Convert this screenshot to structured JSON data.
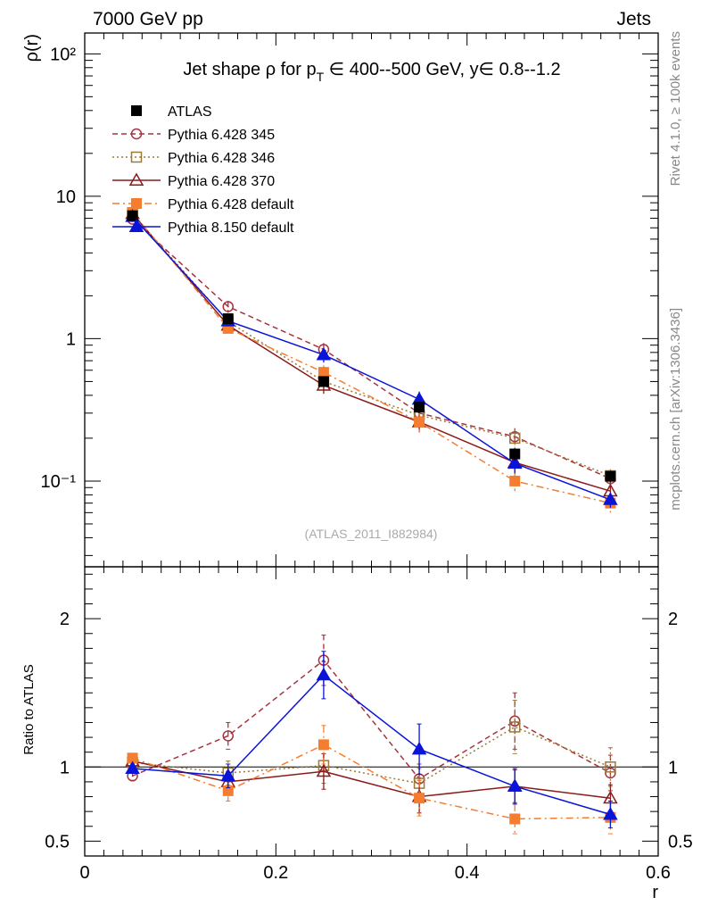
{
  "header": {
    "left": "7000 GeV pp",
    "right": "Jets"
  },
  "side_label_top": "Rivet 4.1.0, ≥ 100k events",
  "side_label_bottom": "mcplots.cern.ch [arXiv:1306.3436]",
  "watermark": "(ATLAS_2011_I882984)",
  "chart_data": {
    "type": "line",
    "title": {
      "prefix": "Jet shape ρ for p",
      "sub": "T",
      "suffix": " ∈ 400--500 GeV, y∈ 0.8--1.2"
    },
    "ylabel": "ρ(r)",
    "ratio_ylabel": "Ratio to ATLAS",
    "xlabel": "r",
    "xlim": [
      0,
      0.6
    ],
    "ylim": [
      0.025,
      140
    ],
    "ratio_ylim": [
      0.4,
      2.35
    ],
    "yscale": "log",
    "x_ticks": [
      "0",
      "0.2",
      "0.4",
      "0.6"
    ],
    "y_ticks": [
      "10⁻¹",
      "1",
      "10",
      "10²"
    ],
    "ratio_y_ticks": [
      "0.5",
      "1",
      "2"
    ],
    "x": [
      0.05,
      0.15,
      0.25,
      0.35,
      0.45,
      0.55
    ],
    "series": [
      {
        "name": "ATLAS",
        "color": "#000000",
        "marker": "square-filled",
        "line": "none",
        "values": [
          7.3,
          1.38,
          0.5,
          0.33,
          0.155,
          0.108
        ],
        "errors": [
          0.25,
          0.09,
          0.04,
          0.03,
          0.015,
          0.01
        ],
        "ratio": [
          1.0,
          1.0,
          1.0,
          1.0,
          1.0,
          1.0
        ]
      },
      {
        "name": "Pythia 6.428 345",
        "color": "#a5343f",
        "marker": "circle-open",
        "line": "dashed",
        "values": [
          6.9,
          1.68,
          0.84,
          0.3,
          0.205,
          0.104
        ],
        "errors": [
          0.3,
          0.16,
          0.09,
          0.04,
          0.03,
          0.012
        ],
        "ratio": [
          0.94,
          1.21,
          1.72,
          0.92,
          1.31,
          0.96
        ],
        "ratio_errors": [
          0.03,
          0.09,
          0.17,
          0.1,
          0.19,
          0.12
        ]
      },
      {
        "name": "Pythia 6.428 346",
        "color": "#9c7a37",
        "marker": "square-open",
        "line": "dotted",
        "values": [
          7.5,
          1.32,
          0.5,
          0.29,
          0.2,
          0.109
        ],
        "errors": [
          0.3,
          0.12,
          0.06,
          0.04,
          0.03,
          0.012
        ],
        "ratio": [
          1.03,
          0.96,
          1.01,
          0.89,
          1.27,
          1.0
        ],
        "ratio_errors": [
          0.03,
          0.08,
          0.12,
          0.1,
          0.18,
          0.13
        ]
      },
      {
        "name": "Pythia 6.428 370",
        "color": "#8b1a1a",
        "marker": "triangle-open",
        "line": "solid",
        "values": [
          7.55,
          1.24,
          0.47,
          0.26,
          0.135,
          0.085
        ],
        "errors": [
          0.3,
          0.1,
          0.06,
          0.04,
          0.02,
          0.01
        ],
        "ratio": [
          1.04,
          0.9,
          0.97,
          0.8,
          0.87,
          0.79
        ],
        "ratio_errors": [
          0.03,
          0.07,
          0.12,
          0.11,
          0.11,
          0.09
        ]
      },
      {
        "name": "Pythia 6.428 default",
        "color": "#f47d2f",
        "marker": "square-filled",
        "line": "dashdot",
        "values": [
          7.7,
          1.18,
          0.58,
          0.26,
          0.1,
          0.07
        ],
        "errors": [
          0.3,
          0.1,
          0.07,
          0.04,
          0.015,
          0.01
        ],
        "ratio": [
          1.06,
          0.84,
          1.15,
          0.79,
          0.65,
          0.66
        ],
        "ratio_errors": [
          0.03,
          0.07,
          0.13,
          0.12,
          0.1,
          0.11
        ]
      },
      {
        "name": "Pythia 8.150 default",
        "color": "#0a14d8",
        "marker": "triangle-filled",
        "line": "solid",
        "values": [
          7.2,
          1.33,
          0.77,
          0.375,
          0.133,
          0.074
        ],
        "errors": [
          0.3,
          0.11,
          0.09,
          0.05,
          0.02,
          0.009
        ],
        "ratio": [
          0.99,
          0.94,
          1.62,
          1.12,
          0.87,
          0.68
        ],
        "ratio_errors": [
          0.03,
          0.08,
          0.16,
          0.17,
          0.12,
          0.09
        ]
      }
    ]
  }
}
